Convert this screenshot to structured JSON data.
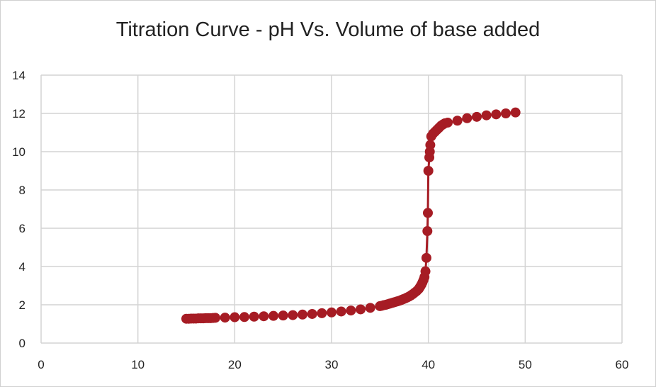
{
  "chart_data": {
    "type": "scatter",
    "title": "Titration Curve - pH Vs. Volume of base added",
    "xlabel": "",
    "ylabel": "",
    "xlim": [
      0,
      60
    ],
    "ylim": [
      0,
      14
    ],
    "xticks": [
      0,
      10,
      20,
      30,
      40,
      50,
      60
    ],
    "yticks": [
      0,
      2,
      4,
      6,
      8,
      10,
      12,
      14
    ],
    "grid": true,
    "legend": "none",
    "series_color": "#A61C24",
    "x": [
      15,
      15.25,
      15.5,
      15.75,
      16,
      16.25,
      16.5,
      16.75,
      17,
      17.25,
      17.5,
      17.75,
      18,
      19,
      20,
      21,
      22,
      23,
      24,
      25,
      26,
      27,
      28,
      29,
      30,
      31,
      32,
      33,
      34,
      35,
      35.2,
      35.4,
      35.6,
      35.8,
      36,
      36.2,
      36.4,
      36.6,
      36.8,
      37,
      37.2,
      37.4,
      37.6,
      37.8,
      38,
      38.2,
      38.4,
      38.6,
      38.8,
      39,
      39.1,
      39.2,
      39.3,
      39.4,
      39.5,
      39.6,
      39.7,
      39.8,
      39.9,
      39.95,
      40,
      40.1,
      40.15,
      40.2,
      40.3,
      40.5,
      40.7,
      40.9,
      41.1,
      41.3,
      41.5,
      41.7,
      42,
      43,
      44,
      45,
      46,
      47,
      48,
      49
    ],
    "y": [
      1.27,
      1.27,
      1.28,
      1.28,
      1.28,
      1.29,
      1.29,
      1.29,
      1.3,
      1.3,
      1.3,
      1.31,
      1.32,
      1.33,
      1.35,
      1.36,
      1.38,
      1.4,
      1.42,
      1.44,
      1.46,
      1.49,
      1.52,
      1.56,
      1.6,
      1.65,
      1.7,
      1.76,
      1.84,
      1.93,
      1.95,
      1.98,
      2.0,
      2.03,
      2.06,
      2.09,
      2.12,
      2.15,
      2.18,
      2.21,
      2.25,
      2.29,
      2.33,
      2.38,
      2.43,
      2.49,
      2.56,
      2.64,
      2.72,
      2.82,
      2.9,
      2.98,
      3.07,
      3.18,
      3.3,
      3.45,
      3.75,
      4.45,
      5.85,
      6.8,
      9.0,
      9.7,
      10.0,
      10.35,
      10.8,
      10.95,
      11.05,
      11.15,
      11.25,
      11.35,
      11.42,
      11.48,
      11.52,
      11.62,
      11.75,
      11.82,
      11.9,
      11.95,
      12.0,
      12.05
    ]
  }
}
